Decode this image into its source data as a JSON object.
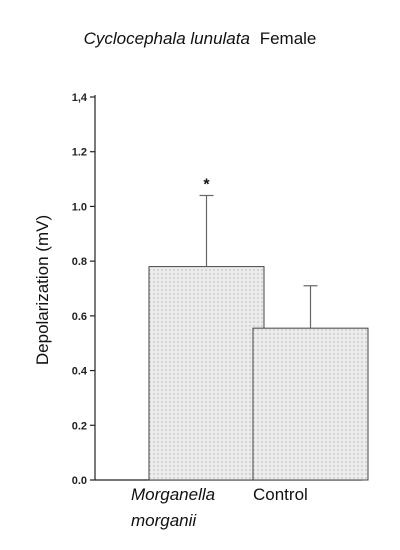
{
  "title": {
    "species": "Cyclocephala lunulata",
    "suffix": "Female"
  },
  "chart_data": {
    "type": "bar",
    "categories": [
      {
        "line1": "Morganella",
        "line2": "morganii",
        "italic": true
      },
      {
        "line1": "Control",
        "line2": "",
        "italic": false
      }
    ],
    "values": [
      0.78,
      0.555
    ],
    "error_upper": [
      1.04,
      0.71
    ],
    "annotations": [
      "*",
      ""
    ],
    "ylabel": "Depolarization (mV)",
    "xlabel": "",
    "ylim": [
      0.0,
      1.4
    ],
    "yticks": [
      "0.0",
      "0.2",
      "0.4",
      "0.6",
      "0.8",
      "1.0",
      "1.2",
      "1,4"
    ],
    "grid": false,
    "bar_fill": "dotted-light-gray",
    "colors": {
      "bar_fill": "#ececec",
      "bar_dots": "#c8c8c8",
      "bar_stroke": "#444444",
      "axis": "#222222",
      "error_bar": "#666666"
    }
  }
}
